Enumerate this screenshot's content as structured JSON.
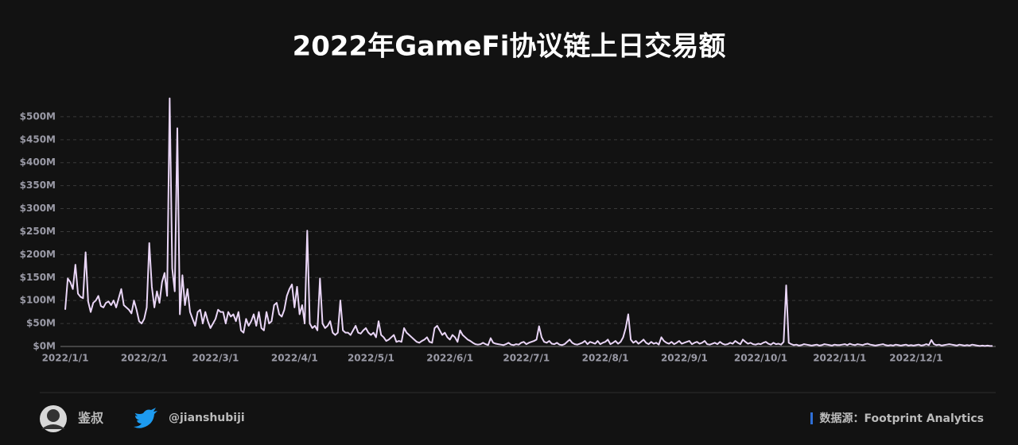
{
  "chart_data": {
    "type": "line",
    "title": "2022年GameFi协议链上日交易额",
    "color": "#ead6f7",
    "grid": true,
    "ylim": [
      0,
      550
    ],
    "yticks": [
      {
        "value": 0,
        "label": "$0M"
      },
      {
        "value": 50,
        "label": "$50M"
      },
      {
        "value": 100,
        "label": "$100M"
      },
      {
        "value": 150,
        "label": "$150M"
      },
      {
        "value": 200,
        "label": "$200M"
      },
      {
        "value": 250,
        "label": "$250M"
      },
      {
        "value": 300,
        "label": "$300M"
      },
      {
        "value": 350,
        "label": "$350M"
      },
      {
        "value": 400,
        "label": "$400M"
      },
      {
        "value": 450,
        "label": "$450M"
      },
      {
        "value": 500,
        "label": "$500M"
      }
    ],
    "categories": [
      "2022/1/1",
      null,
      null,
      null,
      null,
      null,
      null,
      null,
      null,
      null,
      null,
      null,
      null,
      null,
      null,
      null,
      null,
      null,
      null,
      null,
      null,
      null,
      null,
      null,
      null,
      null,
      null,
      null,
      null,
      null,
      null,
      "2022/2/1",
      null,
      null,
      null,
      null,
      null,
      null,
      null,
      null,
      null,
      null,
      null,
      null,
      null,
      null,
      null,
      null,
      null,
      null,
      null,
      null,
      null,
      null,
      null,
      null,
      null,
      null,
      null,
      "2022/3/1",
      null,
      null,
      null,
      null,
      null,
      null,
      null,
      null,
      null,
      null,
      null,
      null,
      null,
      null,
      null,
      null,
      null,
      null,
      null,
      null,
      null,
      null,
      null,
      null,
      null,
      null,
      null,
      null,
      null,
      null,
      "2022/4/1",
      null,
      null,
      null,
      null,
      null,
      null,
      null,
      null,
      null,
      null,
      null,
      null,
      null,
      null,
      null,
      null,
      null,
      null,
      null,
      null,
      null,
      null,
      null,
      null,
      null,
      null,
      null,
      null,
      null,
      "2022/5/1",
      null,
      null,
      null,
      null,
      null,
      null,
      null,
      null,
      null,
      null,
      null,
      null,
      null,
      null,
      null,
      null,
      null,
      null,
      null,
      null,
      null,
      null,
      null,
      null,
      null,
      null,
      null,
      null,
      null,
      null,
      "2022/6/1",
      null,
      null,
      null,
      null,
      null,
      null,
      null,
      null,
      null,
      null,
      null,
      null,
      null,
      null,
      null,
      null,
      null,
      null,
      null,
      null,
      null,
      null,
      null,
      null,
      null,
      null,
      null,
      null,
      null,
      "2022/7/1",
      null,
      null,
      null,
      null,
      null,
      null,
      null,
      null,
      null,
      null,
      null,
      null,
      null,
      null,
      null,
      null,
      null,
      null,
      null,
      null,
      null,
      null,
      null,
      null,
      null,
      null,
      null,
      null,
      null,
      null,
      "2022/8/1",
      null,
      null,
      null,
      null,
      null,
      null,
      null,
      null,
      null,
      null,
      null,
      null,
      null,
      null,
      null,
      null,
      null,
      null,
      null,
      null,
      null,
      null,
      null,
      null,
      null,
      null,
      null,
      null,
      null,
      null,
      "2022/9/1",
      null,
      null,
      null,
      null,
      null,
      null,
      null,
      null,
      null,
      null,
      null,
      null,
      null,
      null,
      null,
      null,
      null,
      null,
      null,
      null,
      null,
      null,
      null,
      null,
      null,
      null,
      null,
      null,
      null,
      "2022/10/1",
      null,
      null,
      null,
      null,
      null,
      null,
      null,
      null,
      null,
      null,
      null,
      null,
      null,
      null,
      null,
      null,
      null,
      null,
      null,
      null,
      null,
      null,
      null,
      null,
      null,
      null,
      null,
      null,
      null,
      null,
      "2022/11/1",
      null,
      null,
      null,
      null,
      null,
      null,
      null,
      null,
      null,
      null,
      null,
      null,
      null,
      null,
      null,
      null,
      null,
      null,
      null,
      null,
      null,
      null,
      null,
      null,
      null,
      null,
      null,
      null,
      null,
      "2022/12/1",
      null,
      null,
      null,
      null,
      null,
      null,
      null,
      null,
      null,
      null,
      null,
      null,
      null,
      null,
      null,
      null,
      null,
      null,
      null,
      null,
      null,
      null,
      null,
      null,
      null,
      null,
      null,
      null,
      null,
      null
    ],
    "values": [
      80,
      148,
      140,
      125,
      178,
      115,
      108,
      105,
      205,
      98,
      75,
      95,
      100,
      110,
      88,
      85,
      95,
      98,
      90,
      100,
      85,
      105,
      125,
      90,
      85,
      80,
      72,
      100,
      80,
      55,
      50,
      60,
      85,
      225,
      130,
      85,
      120,
      95,
      140,
      160,
      110,
      540,
      170,
      120,
      475,
      70,
      155,
      90,
      125,
      75,
      60,
      45,
      75,
      80,
      50,
      75,
      55,
      40,
      50,
      60,
      80,
      75,
      75,
      50,
      75,
      65,
      70,
      55,
      75,
      35,
      30,
      60,
      45,
      55,
      70,
      45,
      75,
      40,
      35,
      75,
      50,
      55,
      90,
      95,
      70,
      65,
      80,
      110,
      125,
      135,
      85,
      130,
      70,
      90,
      50,
      252,
      50,
      40,
      45,
      35,
      148,
      50,
      40,
      45,
      55,
      30,
      25,
      30,
      100,
      35,
      30,
      30,
      25,
      35,
      45,
      30,
      28,
      35,
      40,
      30,
      25,
      30,
      20,
      55,
      25,
      20,
      12,
      15,
      20,
      25,
      10,
      12,
      10,
      40,
      30,
      25,
      20,
      15,
      10,
      8,
      12,
      15,
      20,
      10,
      8,
      40,
      45,
      35,
      25,
      30,
      20,
      15,
      25,
      20,
      10,
      35,
      25,
      20,
      15,
      12,
      8,
      5,
      4,
      5,
      8,
      5,
      3,
      18,
      8,
      6,
      5,
      4,
      3,
      5,
      8,
      4,
      3,
      5,
      4,
      8,
      10,
      5,
      8,
      10,
      12,
      15,
      44,
      20,
      10,
      8,
      12,
      6,
      5,
      8,
      4,
      3,
      5,
      10,
      15,
      8,
      5,
      4,
      6,
      8,
      12,
      5,
      10,
      8,
      6,
      12,
      5,
      8,
      10,
      15,
      5,
      8,
      12,
      6,
      10,
      20,
      40,
      70,
      15,
      8,
      12,
      6,
      10,
      15,
      8,
      5,
      10,
      6,
      8,
      4,
      20,
      12,
      8,
      6,
      10,
      5,
      8,
      12,
      6,
      8,
      10,
      12,
      5,
      8,
      10,
      6,
      8,
      12,
      5,
      4,
      6,
      8,
      5,
      10,
      6,
      4,
      5,
      8,
      6,
      12,
      8,
      5,
      15,
      10,
      6,
      8,
      5,
      4,
      6,
      5,
      8,
      10,
      6,
      4,
      8,
      5,
      6,
      4,
      10,
      133,
      8,
      5,
      3,
      4,
      2,
      3,
      5,
      4,
      3,
      2,
      3,
      4,
      2,
      3,
      5,
      4,
      3,
      2,
      4,
      3,
      3,
      4,
      5,
      3,
      6,
      4,
      3,
      5,
      4,
      3,
      5,
      6,
      4,
      3,
      2,
      3,
      4,
      5,
      3,
      2,
      3,
      2,
      4,
      3,
      2,
      3,
      4,
      2,
      3,
      2,
      3,
      4,
      2,
      3,
      5,
      3,
      14,
      5,
      3,
      4,
      2,
      3,
      4,
      5,
      4,
      3,
      2,
      4,
      3,
      2,
      3,
      2,
      4,
      3,
      2,
      1,
      2,
      1,
      2,
      1,
      1
    ]
  },
  "footer": {
    "author": "鉴叔",
    "handle": "@jianshubiji",
    "source": "数据源：Footprint  Analytics"
  }
}
